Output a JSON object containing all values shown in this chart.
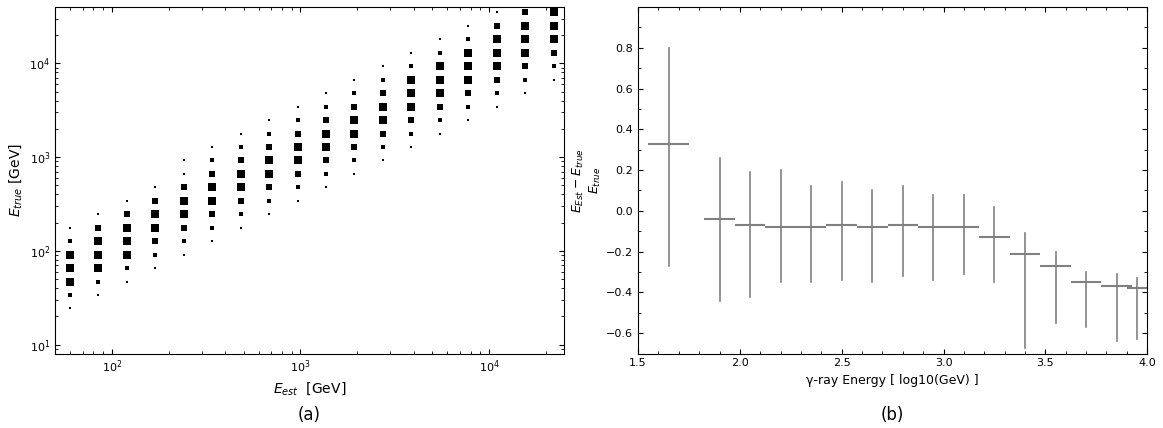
{
  "panel_a": {
    "xlabel": "E_{est}  [GeV]",
    "ylabel": "E_{true} [GeV]",
    "xlim": [
      50,
      25000
    ],
    "ylim": [
      8,
      40000
    ],
    "subtitle": "(a)",
    "log_bins_x": [
      70,
      85,
      100,
      120,
      150,
      180,
      220,
      270,
      330,
      400,
      500,
      620,
      760,
      930,
      1150,
      1400,
      1720,
      2100,
      2600,
      3200,
      3900,
      4800,
      5900,
      7200,
      8800,
      10800,
      13200,
      16200,
      20000
    ],
    "log_bins_y": [
      9,
      11,
      13,
      16,
      19,
      24,
      29,
      35,
      43,
      53,
      65,
      79,
      97,
      118,
      145,
      177,
      217,
      265,
      325,
      397,
      486,
      595,
      728,
      891,
      1090,
      1334,
      1632,
      1997,
      2443,
      2989,
      3658,
      4477,
      5477,
      6700,
      8196,
      10026,
      12268,
      15009,
      18367,
      22474,
      27500
    ]
  },
  "panel_b": {
    "xlabel": "γ-ray Energy [ log10(GeV) ]",
    "xlim": [
      1.5,
      4.0
    ],
    "ylim": [
      -0.7,
      1.0
    ],
    "subtitle": "(b)",
    "x": [
      1.65,
      1.9,
      2.05,
      2.2,
      2.35,
      2.5,
      2.65,
      2.8,
      2.95,
      3.1,
      3.25,
      3.4,
      3.55,
      3.7,
      3.85,
      3.95
    ],
    "xerr": [
      0.1,
      0.075,
      0.075,
      0.075,
      0.075,
      0.075,
      0.075,
      0.075,
      0.075,
      0.075,
      0.075,
      0.075,
      0.075,
      0.075,
      0.075,
      0.05
    ],
    "y": [
      0.33,
      -0.04,
      -0.07,
      -0.08,
      -0.08,
      -0.07,
      -0.08,
      -0.07,
      -0.08,
      -0.08,
      -0.13,
      -0.21,
      -0.27,
      -0.35,
      -0.37,
      -0.38
    ],
    "yerr_low": [
      0.6,
      0.4,
      0.35,
      0.27,
      0.27,
      0.27,
      0.27,
      0.25,
      0.26,
      0.23,
      0.22,
      0.46,
      0.28,
      0.22,
      0.27,
      0.25
    ],
    "yerr_high": [
      0.47,
      0.3,
      0.26,
      0.28,
      0.2,
      0.21,
      0.18,
      0.19,
      0.16,
      0.16,
      0.15,
      0.1,
      0.07,
      0.05,
      0.06,
      0.05
    ],
    "color": "#808080",
    "linewidth": 1.2
  }
}
